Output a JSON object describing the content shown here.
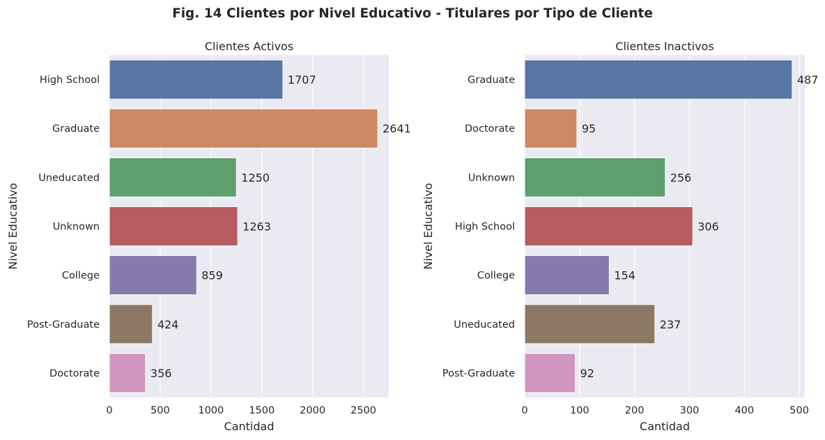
{
  "figure": {
    "title": "Fig. 14 Clientes por Nivel Educativo - Titulares por Tipo de Cliente"
  },
  "chart_data": [
    {
      "type": "bar",
      "orientation": "horizontal",
      "title": "Clientes Activos",
      "xlabel": "Cantidad",
      "ylabel": "Nivel Educativo",
      "categories": [
        "High School",
        "Graduate",
        "Uneducated",
        "Unknown",
        "College",
        "Post-Graduate",
        "Doctorate"
      ],
      "values": [
        1707,
        2641,
        1250,
        1263,
        859,
        424,
        356
      ],
      "data_labels": [
        "1707",
        "2641",
        "1250",
        "1263",
        "859",
        "424",
        "356"
      ],
      "colors": [
        "#5975a4",
        "#cc8963",
        "#5f9e6e",
        "#b55d60",
        "#857aab",
        "#8d7866",
        "#d095bf"
      ],
      "xlim": [
        0,
        2750
      ],
      "xticks": [
        0,
        500,
        1000,
        1500,
        2000,
        2500
      ],
      "grid": true
    },
    {
      "type": "bar",
      "orientation": "horizontal",
      "title": "Clientes Inactivos",
      "xlabel": "Cantidad",
      "ylabel": "Nivel Educativo",
      "categories": [
        "Graduate",
        "Doctorate",
        "Unknown",
        "High School",
        "College",
        "Uneducated",
        "Post-Graduate"
      ],
      "values": [
        487,
        95,
        256,
        306,
        154,
        237,
        92
      ],
      "data_labels": [
        "487",
        "95",
        "256",
        "306",
        "154",
        "237",
        "92"
      ],
      "colors": [
        "#5975a4",
        "#cc8963",
        "#5f9e6e",
        "#b55d60",
        "#857aab",
        "#8d7866",
        "#d095bf"
      ],
      "xlim": [
        0,
        510
      ],
      "xticks": [
        0,
        100,
        200,
        300,
        400,
        500
      ],
      "grid": true
    }
  ]
}
